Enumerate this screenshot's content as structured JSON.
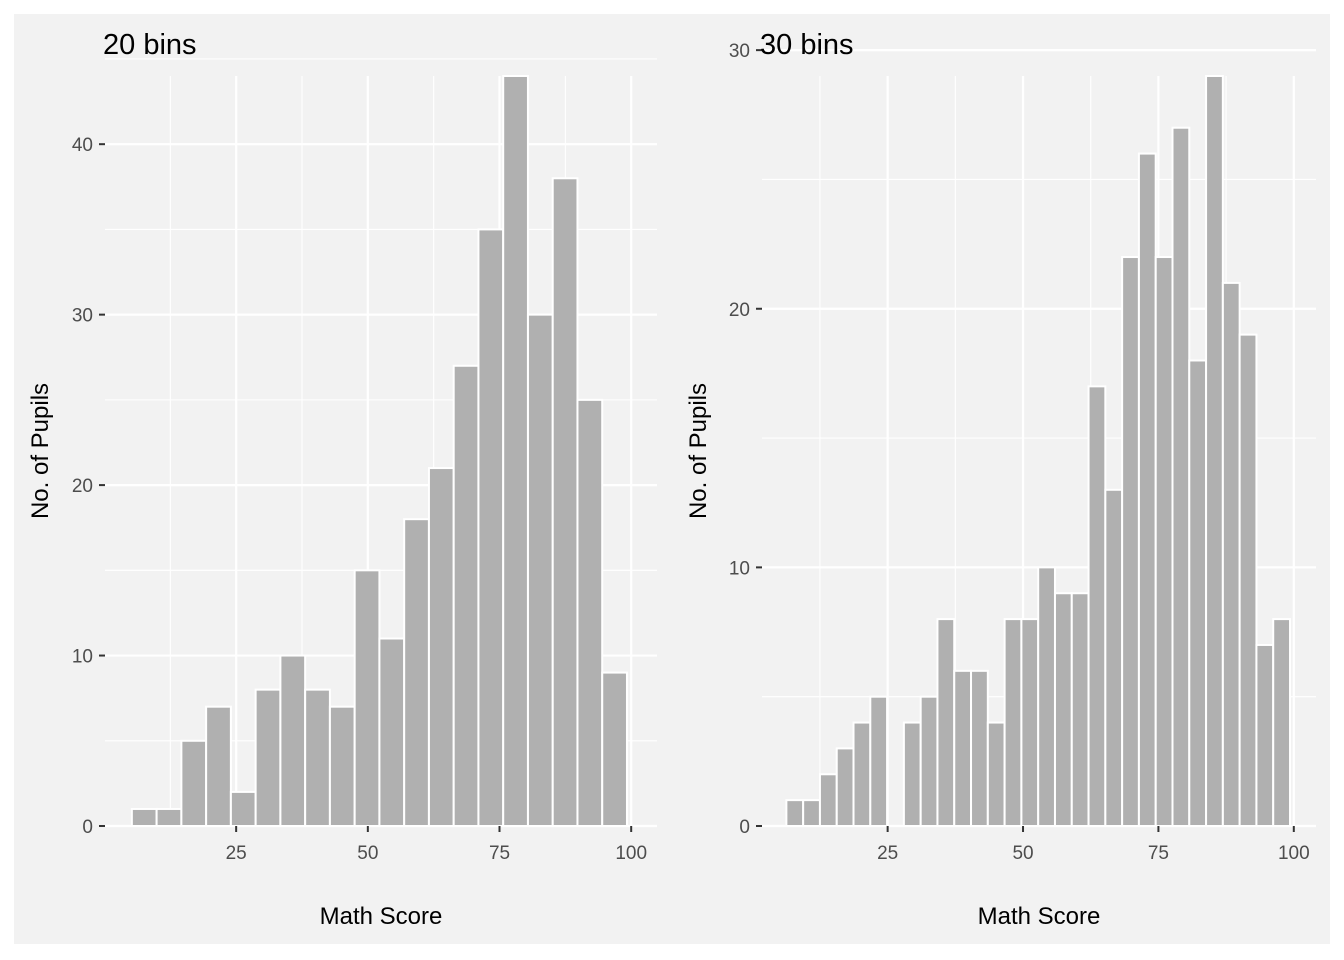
{
  "chart_data": [
    {
      "type": "bar",
      "title": "20 bins",
      "xlabel": "Math Score",
      "ylabel": "No. of Pupils",
      "xlim": [
        0.1,
        104.9
      ],
      "ylim": [
        0,
        44
      ],
      "x_ticks": [
        25,
        50,
        75,
        100
      ],
      "y_ticks": [
        0,
        10,
        20,
        30,
        40
      ],
      "bin_width": 4.7,
      "bin_start": 5.2,
      "values": [
        1,
        1,
        5,
        7,
        2,
        8,
        10,
        8,
        7,
        15,
        11,
        18,
        21,
        27,
        35,
        44,
        30,
        38,
        25,
        9
      ],
      "grid": true
    },
    {
      "type": "bar",
      "title": "30 bins",
      "xlabel": "Math Score",
      "ylabel": "No. of Pupils",
      "xlim": [
        1.8,
        104.1
      ],
      "ylim": [
        0,
        29
      ],
      "x_ticks": [
        25,
        50,
        75,
        100
      ],
      "y_ticks": [
        0,
        10,
        20,
        30
      ],
      "bin_width": 3.1,
      "bin_start": 6.3,
      "values": [
        1,
        1,
        2,
        3,
        4,
        5,
        0,
        4,
        5,
        8,
        6,
        6,
        4,
        8,
        8,
        10,
        9,
        9,
        17,
        13,
        22,
        26,
        22,
        27,
        18,
        29,
        21,
        19,
        7,
        8
      ],
      "grid": true
    }
  ]
}
